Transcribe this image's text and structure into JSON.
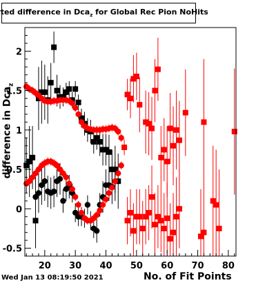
{
  "title": {
    "main": "Fitted difference in Dca",
    "sub": "z",
    "rest": " for Global Rec Pion NoHits"
  },
  "footer": {
    "date": "Wed Jan 13 08:19:50 2021"
  },
  "chart_data": {
    "type": "scatter",
    "title": "Fitted difference in Dcaz for Global Rec Pion NoHits",
    "xlabel": "No. of Fit Points",
    "ylabel_main": "difference in Dca",
    "ylabel_sub": "z",
    "xlim": [
      13.5,
      82.5
    ],
    "ylim": [
      -0.6,
      2.3
    ],
    "xticks": [
      20,
      30,
      40,
      50,
      60,
      70,
      80
    ],
    "yticks": [
      -0.5,
      0,
      0.5,
      1,
      1.5,
      2
    ],
    "ytick_labels": [
      "-0.5",
      "0",
      "0.5",
      "1",
      "1.5",
      "2"
    ],
    "grid": false,
    "colors": {
      "black_series": "#000000",
      "red_series": "#ff0000",
      "frame": "#000000"
    },
    "series": [
      {
        "marker": "square",
        "color": "#000000",
        "points": [
          [
            14,
            0.55,
            0.35
          ],
          [
            15,
            0.6,
            0.45
          ],
          [
            16,
            0.65,
            0.4
          ],
          [
            17,
            -0.15,
            0.35
          ],
          [
            18,
            1.4,
            0.4
          ],
          [
            19,
            1.48,
            0.4
          ],
          [
            20,
            1.48,
            0.35
          ],
          [
            21,
            1.38,
            0.3
          ],
          [
            22,
            1.6,
            0.25
          ],
          [
            23,
            2.05,
            0.2
          ],
          [
            24,
            1.5,
            0.2
          ],
          [
            25,
            1.42,
            0.15
          ],
          [
            26,
            1.42,
            0.12
          ],
          [
            27,
            1.48,
            0.12
          ],
          [
            28,
            1.52,
            0.1
          ],
          [
            29,
            1.38,
            0.1
          ],
          [
            30,
            1.52,
            0.1
          ],
          [
            31,
            1.35,
            0.1
          ],
          [
            32,
            1.15,
            0.12
          ],
          [
            33,
            1.08,
            0.15
          ],
          [
            34,
            1.0,
            0.15
          ],
          [
            35,
            0.98,
            0.15
          ],
          [
            36,
            0.85,
            0.15
          ],
          [
            37,
            0.9,
            0.15
          ],
          [
            38,
            0.85,
            0.18
          ],
          [
            39,
            0.75,
            0.2
          ],
          [
            40,
            0.75,
            0.2
          ],
          [
            41,
            0.72,
            0.22
          ],
          [
            42,
            0.5,
            0.25
          ],
          [
            43,
            0.5,
            0.3
          ],
          [
            44,
            0.35,
            0.35
          ]
        ]
      },
      {
        "marker": "circle",
        "color": "#000000",
        "points": [
          [
            17,
            0.15,
            0.25
          ],
          [
            18,
            0.2,
            0.25
          ],
          [
            19,
            0.3,
            0.25
          ],
          [
            20,
            0.35,
            0.25
          ],
          [
            21,
            0.22,
            0.2
          ],
          [
            22,
            0.2,
            0.2
          ],
          [
            23,
            0.22,
            0.2
          ],
          [
            24,
            0.35,
            0.2
          ],
          [
            25,
            0.38,
            0.2
          ],
          [
            26,
            0.1,
            0.15
          ],
          [
            27,
            0.25,
            0.15
          ],
          [
            28,
            0.28,
            0.15
          ],
          [
            29,
            0.2,
            0.12
          ],
          [
            30,
            -0.05,
            0.12
          ],
          [
            31,
            -0.1,
            0.12
          ],
          [
            32,
            -0.1,
            0.12
          ],
          [
            33,
            -0.12,
            0.12
          ],
          [
            34,
            0.05,
            0.12
          ],
          [
            35,
            -0.15,
            0.12
          ],
          [
            36,
            -0.25,
            0.12
          ],
          [
            37,
            -0.28,
            0.15
          ],
          [
            38,
            0.05,
            0.15
          ],
          [
            39,
            0.15,
            0.2
          ],
          [
            40,
            0.3,
            0.2
          ],
          [
            41,
            0.3,
            0.2
          ],
          [
            42,
            0.28,
            0.22
          ],
          [
            43,
            0.35,
            0.25
          ]
        ]
      },
      {
        "marker": "circle",
        "color": "#ff0000",
        "points": [
          [
            14,
            1.55,
            0.05
          ],
          [
            15,
            1.52,
            0.05
          ],
          [
            16,
            1.5,
            0.05
          ],
          [
            17,
            1.47,
            0.05
          ],
          [
            18,
            1.44,
            0.05
          ],
          [
            19,
            1.4,
            0.05
          ],
          [
            20,
            1.37,
            0.05
          ],
          [
            21,
            1.36,
            0.05
          ],
          [
            22,
            1.36,
            0.05
          ],
          [
            23,
            1.37,
            0.05
          ],
          [
            24,
            1.37,
            0.05
          ],
          [
            25,
            1.38,
            0.05
          ],
          [
            26,
            1.38,
            0.05
          ],
          [
            27,
            1.38,
            0.05
          ],
          [
            28,
            1.37,
            0.05
          ],
          [
            29,
            1.34,
            0.05
          ],
          [
            30,
            1.28,
            0.05
          ],
          [
            31,
            1.2,
            0.05
          ],
          [
            32,
            1.1,
            0.05
          ],
          [
            33,
            1.05,
            0.05
          ],
          [
            34,
            1.02,
            0.05
          ],
          [
            35,
            1.01,
            0.05
          ],
          [
            36,
            1.0,
            0.05
          ],
          [
            37,
            1.0,
            0.05
          ],
          [
            38,
            1.0,
            0.05
          ],
          [
            39,
            1.01,
            0.05
          ],
          [
            40,
            1.01,
            0.05
          ],
          [
            41,
            1.02,
            0.05
          ],
          [
            42,
            1.03,
            0.05
          ],
          [
            43,
            1.02,
            0.05
          ],
          [
            44,
            0.98,
            0.05
          ],
          [
            45,
            0.9,
            0.05
          ],
          [
            14,
            0.32,
            0.05
          ],
          [
            15,
            0.35,
            0.05
          ],
          [
            16,
            0.4,
            0.05
          ],
          [
            17,
            0.45,
            0.05
          ],
          [
            18,
            0.5,
            0.05
          ],
          [
            19,
            0.55,
            0.05
          ],
          [
            20,
            0.58,
            0.05
          ],
          [
            21,
            0.6,
            0.05
          ],
          [
            22,
            0.6,
            0.05
          ],
          [
            23,
            0.58,
            0.05
          ],
          [
            24,
            0.55,
            0.05
          ],
          [
            25,
            0.5,
            0.05
          ],
          [
            26,
            0.45,
            0.05
          ],
          [
            27,
            0.4,
            0.05
          ],
          [
            28,
            0.32,
            0.05
          ],
          [
            29,
            0.25,
            0.05
          ],
          [
            30,
            0.15,
            0.05
          ],
          [
            31,
            0.05,
            0.05
          ],
          [
            32,
            -0.05,
            0.05
          ],
          [
            33,
            -0.12,
            0.05
          ],
          [
            34,
            -0.15,
            0.05
          ],
          [
            35,
            -0.15,
            0.05
          ],
          [
            36,
            -0.12,
            0.05
          ],
          [
            37,
            -0.08,
            0.05
          ],
          [
            38,
            -0.02,
            0.05
          ],
          [
            39,
            0.05,
            0.05
          ],
          [
            40,
            0.12,
            0.05
          ],
          [
            41,
            0.2,
            0.05
          ],
          [
            42,
            0.27,
            0.05
          ],
          [
            43,
            0.35,
            0.05
          ],
          [
            44,
            0.45,
            0.05
          ],
          [
            45,
            0.55,
            0.05
          ]
        ]
      },
      {
        "marker": "square",
        "color": "#ff0000",
        "points": [
          [
            46,
            0.78,
            0.1
          ],
          [
            47,
            1.45,
            0.2
          ],
          [
            48,
            1.4,
            0.25
          ],
          [
            49,
            1.65,
            0.3
          ],
          [
            50,
            1.68,
            0.3
          ],
          [
            51,
            1.32,
            0.35
          ],
          [
            53,
            1.1,
            0.4
          ],
          [
            54,
            1.08,
            0.4
          ],
          [
            55,
            1.02,
            0.4
          ],
          [
            56,
            1.5,
            0.4
          ],
          [
            57,
            1.77,
            0.4
          ],
          [
            58,
            0.65,
            0.4
          ],
          [
            59,
            0.75,
            0.4
          ],
          [
            60,
            0.6,
            0.45
          ],
          [
            61,
            1.02,
            0.45
          ],
          [
            62,
            0.8,
            0.5
          ],
          [
            63,
            1.0,
            0.5
          ],
          [
            64,
            0.87,
            0.5
          ],
          [
            72,
            1.1,
            0.8
          ],
          [
            82,
            0.98,
            0.8
          ],
          [
            47,
            -0.15,
            0.3
          ],
          [
            48,
            -0.05,
            0.3
          ],
          [
            49,
            -0.28,
            0.35
          ],
          [
            50,
            -0.1,
            0.35
          ],
          [
            51,
            -0.1,
            0.35
          ],
          [
            52,
            -0.25,
            0.35
          ],
          [
            53,
            -0.1,
            0.35
          ],
          [
            54,
            -0.05,
            0.35
          ],
          [
            55,
            0.15,
            0.4
          ],
          [
            56,
            -0.2,
            0.4
          ],
          [
            57,
            -0.1,
            0.4
          ],
          [
            58,
            -0.15,
            0.4
          ],
          [
            59,
            -0.25,
            0.45
          ],
          [
            60,
            -0.12,
            0.45
          ],
          [
            61,
            -0.38,
            0.45
          ],
          [
            62,
            -0.3,
            0.5
          ],
          [
            63,
            -0.1,
            0.5
          ],
          [
            64,
            0.0,
            0.5
          ],
          [
            66,
            1.22,
            0.55
          ],
          [
            71,
            -0.35,
            0.6
          ],
          [
            72,
            -0.3,
            0.6
          ],
          [
            75,
            0.1,
            0.7
          ],
          [
            76,
            0.05,
            0.7
          ],
          [
            77,
            -0.25,
            0.75
          ]
        ]
      }
    ]
  }
}
